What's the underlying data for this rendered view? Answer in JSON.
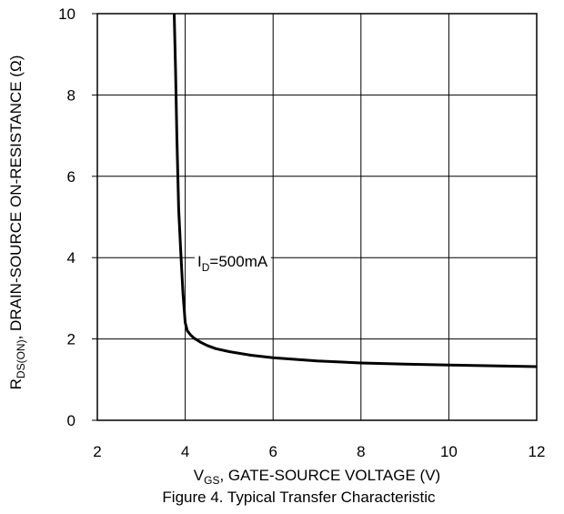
{
  "chart_data": {
    "type": "line",
    "title": "Figure 4. Typical Transfer Characteristic",
    "xlabel": {
      "main": "V",
      "sub": "GS",
      "rest": ", GATE-SOURCE VOLTAGE (V)"
    },
    "ylabel": {
      "main": "R",
      "sub": "DS(ON)",
      "rest": ", DRAIN-SOURCE ON-RESISTANCE (Ω)"
    },
    "xlim": [
      2,
      12
    ],
    "ylim": [
      0,
      10
    ],
    "xticks": [
      "2",
      "4",
      "6",
      "8",
      "10",
      "12"
    ],
    "yticks": [
      "0",
      "2",
      "4",
      "6",
      "8",
      "10"
    ],
    "grid": true,
    "series": [
      {
        "annotation": {
          "main": "I",
          "sub": "D",
          "rest": "=500mA"
        },
        "color": "#000000",
        "x": [
          3.75,
          3.78,
          3.81,
          3.85,
          3.9,
          3.95,
          4.0,
          4.05,
          4.12,
          4.2,
          4.35,
          4.5,
          4.7,
          5.0,
          5.5,
          6.0,
          7.0,
          8.0,
          9.0,
          10.0,
          11.0,
          12.0
        ],
        "y": [
          10.0,
          8.6,
          7.0,
          5.2,
          4.1,
          3.1,
          2.4,
          2.2,
          2.1,
          2.02,
          1.92,
          1.84,
          1.76,
          1.69,
          1.6,
          1.54,
          1.46,
          1.41,
          1.38,
          1.36,
          1.34,
          1.32
        ]
      }
    ]
  }
}
